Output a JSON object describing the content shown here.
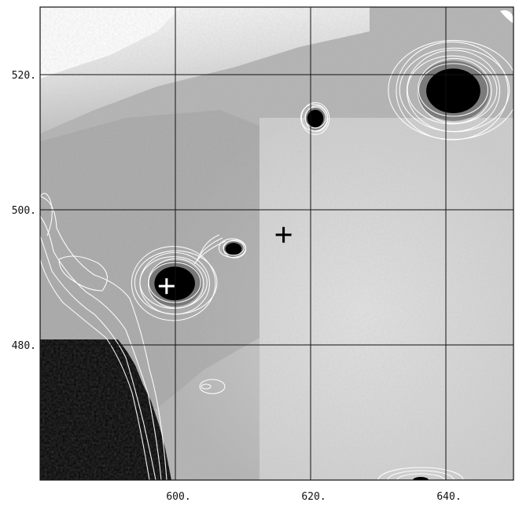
{
  "chart_data": {
    "type": "heatmap",
    "title": "",
    "xlabel": "",
    "ylabel": "",
    "xlim": [
      580,
      650
    ],
    "ylim": [
      460,
      530
    ],
    "grid": true,
    "colormap": "grayscale",
    "x_tick_labels": [
      "600.",
      "620.",
      "640."
    ],
    "y_tick_labels": [
      "520.",
      "500.",
      "480."
    ],
    "x_ticks": [
      600,
      620,
      640
    ],
    "y_ticks": [
      520,
      500,
      480
    ],
    "markers": [
      {
        "symbol": "+",
        "color": "#000000",
        "x": 616,
        "y": 496.3
      },
      {
        "symbol": "+",
        "color": "#ffffff",
        "x": 598.7,
        "y": 488.7
      }
    ],
    "dark_sources": [
      {
        "x": 599.9,
        "y": 489.1,
        "rx": 3.0,
        "ry": 2.5,
        "contours": 6
      },
      {
        "x": 608.6,
        "y": 494.2,
        "rx": 1.2,
        "ry": 0.9,
        "contours": 3
      },
      {
        "x": 620.7,
        "y": 513.5,
        "rx": 1.2,
        "ry": 1.3,
        "contours": 4
      },
      {
        "x": 641.1,
        "y": 517.6,
        "rx": 4.0,
        "ry": 3.3,
        "contours": 7
      }
    ],
    "contour_color": "#ffffff"
  }
}
